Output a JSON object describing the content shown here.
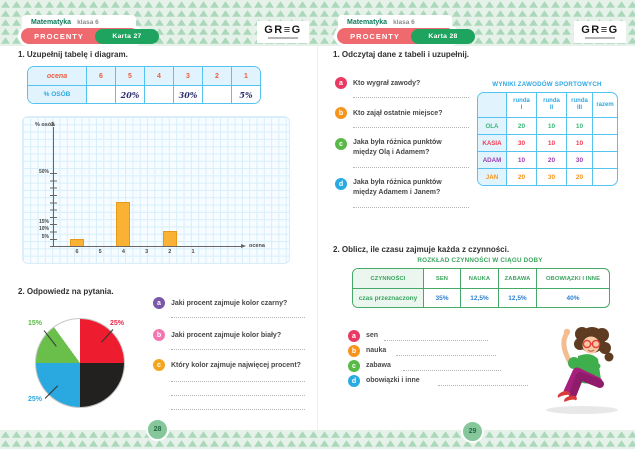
{
  "brand": {
    "logo": "GR≡G"
  },
  "left_page": {
    "tab": {
      "subject": "Matematyka",
      "grade": "klasa 6"
    },
    "topic_pill": "PROCENTY",
    "card_pill": "Karta 27",
    "q1_title": "1. Uzupełnij tabelę i diagram.",
    "grade_table": {
      "corner_label": "ocena",
      "row_label": "% OSÓB",
      "grades": [
        "6",
        "5",
        "4",
        "3",
        "2",
        "1"
      ],
      "percents": [
        "",
        "20%",
        "",
        "30%",
        "",
        "5%"
      ]
    },
    "bar_chart": {
      "y_axis_label": "% osób",
      "x_axis_label": "ocena",
      "y_ticks": [
        "50%",
        "15%",
        "10%",
        "5%"
      ],
      "x_ticks": [
        "6",
        "5",
        "4",
        "3",
        "2",
        "1"
      ]
    },
    "q2_title": "2. Odpowiedz na pytania.",
    "pie_labels": {
      "green": "15%",
      "red": "25%",
      "blue": "25%"
    },
    "questions": [
      {
        "letter": "a",
        "color": "#7a57a8",
        "text": "Jaki procent zajmuje kolor czarny?"
      },
      {
        "letter": "b",
        "color": "#f277b1",
        "text": "Jaki procent zajmuje kolor biały?"
      },
      {
        "letter": "c",
        "color": "#f2a71f",
        "text": "Który kolor zajmuje najwięcej procent?"
      }
    ],
    "page_number": "28"
  },
  "right_page": {
    "tab": {
      "subject": "Matematyka",
      "grade": "klasa 6"
    },
    "topic_pill": "PROCENTY",
    "card_pill": "Karta 28",
    "q1_title": "1. Odczytaj dane z tabeli i uzupełnij.",
    "questions": [
      {
        "letter": "a",
        "color": "#e93a63",
        "text": "Kto wygrał zawody?"
      },
      {
        "letter": "b",
        "color": "#f7941e",
        "text": "Kto zajął ostatnie miejsce?"
      },
      {
        "letter": "c",
        "color": "#59b947",
        "text": "Jaka była różnica punktów między Olą i Adamem?"
      },
      {
        "letter": "d",
        "color": "#29abe2",
        "text": "Jaka była różnica punktów między Adamem i Janem?"
      }
    ],
    "results_table": {
      "title": "WYNIKI ZAWODÓW SPORTOWYCH",
      "runda_word": "runda",
      "runda_nums": [
        "I",
        "II",
        "III"
      ],
      "razem_label": "razem",
      "rows": [
        {
          "name": "OLA",
          "color": "#3cb878",
          "values": [
            "20",
            "10",
            "10",
            ""
          ]
        },
        {
          "name": "KASIA",
          "color": "#ee3d52",
          "values": [
            "30",
            "10",
            "10",
            ""
          ]
        },
        {
          "name": "ADAM",
          "color": "#9b3fb0",
          "values": [
            "10",
            "20",
            "30",
            ""
          ]
        },
        {
          "name": "JAN",
          "color": "#f7941e",
          "values": [
            "20",
            "30",
            "20",
            ""
          ]
        }
      ]
    },
    "q2_title": "2. Oblicz, ile czasu zajmuje każda z czynności.",
    "time_table": {
      "title": "ROZKŁAD CZYNNOŚCI W CIĄGU DOBY",
      "headers": [
        "CZYNNOŚCI",
        "SEN",
        "NAUKA",
        "ZABAWA",
        "OBOWIĄZKI I INNE"
      ],
      "row_label": "czas przeznaczony",
      "values": [
        "35%",
        "12,5%",
        "12,5%",
        "40%"
      ]
    },
    "answers": [
      {
        "letter": "a",
        "color": "#e93a63",
        "text": "sen"
      },
      {
        "letter": "b",
        "color": "#f7941e",
        "text": "nauka"
      },
      {
        "letter": "c",
        "color": "#59b947",
        "text": "zabawa"
      },
      {
        "letter": "d",
        "color": "#29abe2",
        "text": "obowiązki i inne"
      }
    ],
    "page_number": "29"
  },
  "chart_data": [
    {
      "type": "bar",
      "title": "Diagram: % osób wg oceny (do uzupełnienia)",
      "xlabel": "ocena",
      "ylabel": "% osób",
      "categories": [
        "6",
        "5",
        "4",
        "3",
        "2",
        "1"
      ],
      "values": [
        5,
        null,
        30,
        null,
        10,
        null
      ],
      "shown_y_tick_labels": [
        "50%",
        "15%",
        "10%",
        "5%"
      ],
      "ylim": [
        0,
        55
      ],
      "grid": true,
      "bar_color": "#f9b233"
    },
    {
      "type": "pie",
      "title": "Koło z kolorami",
      "start_angle_from_top_deg": 0,
      "direction": "clockwise",
      "slices": [
        {
          "label": "czerwony",
          "value": 25,
          "color": "#ed1c2e",
          "data_label": "25%"
        },
        {
          "label": "czarny",
          "value": 25,
          "color": "#232020",
          "data_label": ""
        },
        {
          "label": "niebieski",
          "value": 25,
          "color": "#2aa9e1",
          "data_label": "25%"
        },
        {
          "label": "zielony",
          "value": 15,
          "color": "#6abf4b",
          "data_label": "15%"
        },
        {
          "label": "biały",
          "value": 10,
          "color": "#ffffff",
          "data_label": ""
        }
      ]
    },
    {
      "type": "table",
      "title": "WYNIKI ZAWODÓW SPORTOWYCH",
      "columns": [
        "",
        "runda I",
        "runda II",
        "runda III",
        "razem"
      ],
      "rows": [
        [
          "OLA",
          "20",
          "10",
          "10",
          ""
        ],
        [
          "KASIA",
          "30",
          "10",
          "10",
          ""
        ],
        [
          "ADAM",
          "10",
          "20",
          "30",
          ""
        ],
        [
          "JAN",
          "20",
          "30",
          "20",
          ""
        ]
      ]
    },
    {
      "type": "table",
      "title": "ROZKŁAD CZYNNOŚCI W CIĄGU DOBY",
      "columns": [
        "CZYNNOŚCI",
        "SEN",
        "NAUKA",
        "ZABAWA",
        "OBOWIĄZKI I INNE"
      ],
      "rows": [
        [
          "czas przeznaczony",
          "35%",
          "12,5%",
          "12,5%",
          "40%"
        ]
      ]
    }
  ]
}
